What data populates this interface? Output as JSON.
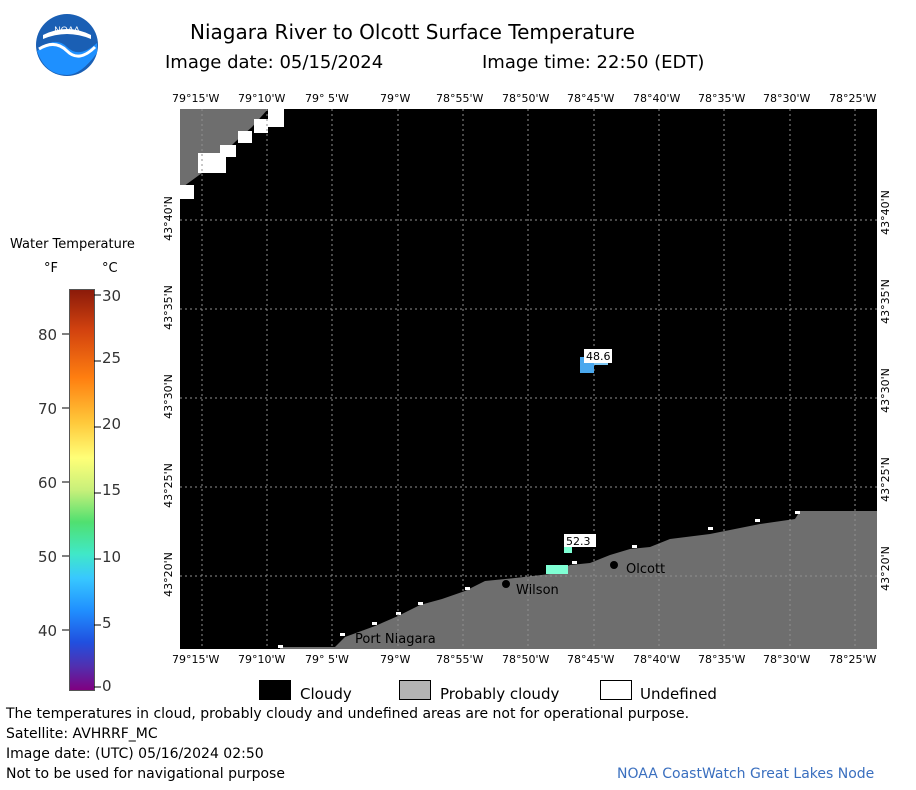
{
  "header": {
    "title": "Niagara River to Olcott Surface Temperature",
    "image_date_label": "Image date: 05/15/2024",
    "image_time_label": "Image time: 22:50 (EDT)",
    "logo_text": "NOAA"
  },
  "axes": {
    "lon_ticks": [
      "79°15'W",
      "79°10'W",
      "79° 5'W",
      "79°W",
      "78°55'W",
      "78°50'W",
      "78°45'W",
      "78°40'W",
      "78°35'W",
      "78°30'W",
      "78°25'W"
    ],
    "lat_ticks": [
      "43°40'N",
      "43°35'N",
      "43°30'N",
      "43°25'N",
      "43°20'N"
    ]
  },
  "map": {
    "places": {
      "port_niagara": "Port Niagara",
      "wilson": "Wilson",
      "olcott": "Olcott"
    },
    "temp_labels": {
      "offshore": "48.6",
      "nearshore": "52.3"
    },
    "colors": {
      "cloudy": "#000000",
      "probably_cloudy": "#6e6e6e",
      "undefined": "#ffffff",
      "offshore_water": "#4aa8ee",
      "nearshore_water": "#7fffd4"
    }
  },
  "colorbar": {
    "title": "Water Temperature",
    "unit_f": "°F",
    "unit_c": "°C",
    "f_ticks": [
      "80",
      "70",
      "60",
      "50",
      "40"
    ],
    "c_ticks": [
      "30",
      "25",
      "20",
      "15",
      "10",
      "5",
      "0"
    ]
  },
  "legend": {
    "cloudy": "Cloudy",
    "probably_cloudy": "Probably cloudy",
    "undefined": "Undefined"
  },
  "footer": {
    "note": "The temperatures in cloud, probably cloudy and undefined areas are not for operational purpose.",
    "satellite": "Satellite: AVHRRF_MC",
    "utc_date": "Image date: (UTC) 05/16/2024  02:50",
    "nav_warning": "Not to be used for navigational purpose",
    "credit": "NOAA CoastWatch Great Lakes Node"
  }
}
